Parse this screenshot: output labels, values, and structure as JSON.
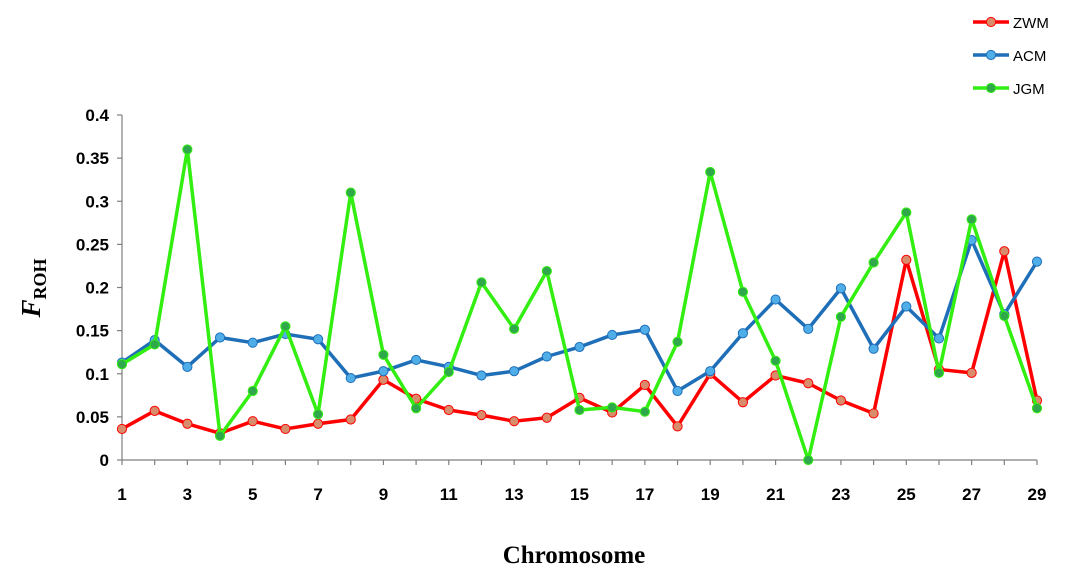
{
  "chart_data": {
    "type": "line",
    "xlabel": "Chromosome",
    "ylabel": {
      "main": "F",
      "sub": "ROH"
    },
    "ylim": [
      0,
      0.4
    ],
    "yticks": [
      "0",
      "0.05",
      "0.1",
      "0.15",
      "0.2",
      "0.25",
      "0.3",
      "0.35",
      "0.4"
    ],
    "x": [
      1,
      2,
      3,
      4,
      5,
      6,
      7,
      8,
      9,
      10,
      11,
      12,
      13,
      14,
      15,
      16,
      17,
      18,
      19,
      20,
      21,
      22,
      23,
      24,
      25,
      26,
      27,
      28,
      29
    ],
    "xticks": [
      "1",
      "3",
      "5",
      "7",
      "9",
      "11",
      "13",
      "15",
      "17",
      "19",
      "21",
      "23",
      "25",
      "27",
      "29"
    ],
    "grid": false,
    "legend_position": "top-right",
    "series": [
      {
        "name": "ZWM",
        "color": "#ff0000",
        "marker_color": "#d98c6c",
        "values": [
          0.036,
          0.057,
          0.042,
          0.031,
          0.045,
          0.036,
          0.042,
          0.047,
          0.093,
          0.071,
          0.058,
          0.052,
          0.045,
          0.049,
          0.072,
          0.055,
          0.087,
          0.039,
          0.1,
          0.067,
          0.098,
          0.089,
          0.069,
          0.054,
          0.232,
          0.105,
          0.101,
          0.242,
          0.069
        ]
      },
      {
        "name": "ACM",
        "color": "#1f6fb8",
        "marker_color": "#4faee8",
        "values": [
          0.113,
          0.139,
          0.108,
          0.142,
          0.136,
          0.146,
          0.14,
          0.095,
          0.103,
          0.116,
          0.108,
          0.098,
          0.103,
          0.12,
          0.131,
          0.145,
          0.151,
          0.08,
          0.103,
          0.147,
          0.186,
          0.152,
          0.199,
          0.129,
          0.178,
          0.141,
          0.255,
          0.169,
          0.23
        ]
      },
      {
        "name": "JGM",
        "color": "#33ee11",
        "marker_color": "#2ea84a",
        "values": [
          0.111,
          0.134,
          0.36,
          0.028,
          0.08,
          0.155,
          0.053,
          0.31,
          0.122,
          0.06,
          0.102,
          0.206,
          0.152,
          0.219,
          0.058,
          0.061,
          0.056,
          0.137,
          0.334,
          0.195,
          0.115,
          0.0,
          0.166,
          0.229,
          0.287,
          0.101,
          0.279,
          0.167,
          0.06
        ]
      }
    ]
  }
}
